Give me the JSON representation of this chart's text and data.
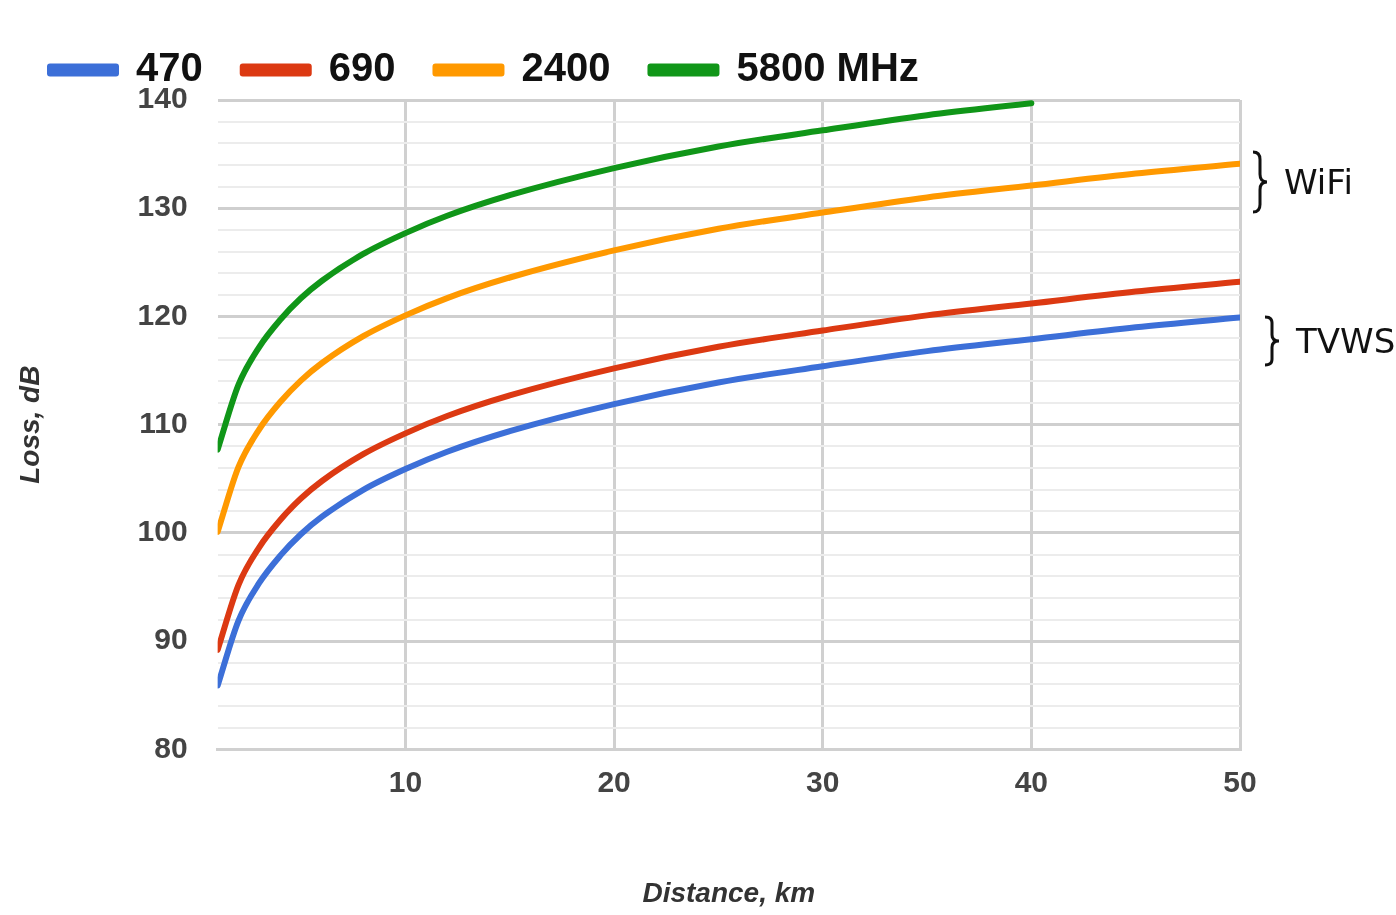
{
  "chart_data": {
    "type": "line",
    "xlabel": "Distance, km",
    "ylabel": "Loss, dB",
    "x": [
      1,
      2,
      3,
      4,
      5,
      6,
      8,
      10,
      12,
      15,
      20,
      25,
      30,
      35,
      40,
      45,
      50
    ],
    "series": [
      {
        "name": "470",
        "color": "#3c6fd8",
        "values": [
          85.9,
          91.9,
          95.4,
          97.9,
          99.9,
          101.5,
          104,
          105.9,
          107.5,
          109.4,
          111.9,
          113.9,
          115.4,
          116.8,
          117.9,
          119,
          119.9
        ]
      },
      {
        "name": "690",
        "color": "#dc3912",
        "values": [
          89.2,
          95.2,
          98.7,
          101.2,
          103.2,
          104.8,
          107.3,
          109.2,
          110.8,
          112.7,
          115.2,
          117.2,
          118.7,
          120.1,
          121.2,
          122.3,
          123.2
        ]
      },
      {
        "name": "2400",
        "color": "#ff9900",
        "values": [
          100.1,
          106.1,
          109.6,
          112.1,
          114.1,
          115.7,
          118.2,
          120.1,
          121.7,
          123.6,
          126.1,
          128.1,
          129.6,
          131,
          132.1,
          133.2,
          134.1
        ]
      },
      {
        "name": "5800 MHz",
        "color": "#109618",
        "values": [
          107.7,
          113.7,
          117.2,
          119.7,
          121.7,
          123.3,
          125.8,
          127.7,
          129.3,
          131.2,
          133.7,
          135.7,
          137.2,
          138.6,
          139.7,
          null,
          null
        ]
      }
    ],
    "xlim": [
      1,
      50
    ],
    "xticks": [
      10,
      20,
      30,
      40,
      50
    ],
    "ylim": [
      80,
      140
    ],
    "yticks": [
      80,
      {
        "value": 82,
        "label": null
      },
      {
        "value": 84,
        "label": null
      },
      {
        "value": 86,
        "label": null
      },
      {
        "value": 88,
        "label": null
      },
      90,
      {
        "value": 92,
        "label": null
      },
      {
        "value": 94,
        "label": null
      },
      {
        "value": 96,
        "label": null
      },
      {
        "value": 98,
        "label": null
      },
      100,
      {
        "value": 102,
        "label": null
      },
      {
        "value": 104,
        "label": null
      },
      {
        "value": 106,
        "label": null
      },
      {
        "value": 108,
        "label": null
      },
      110,
      {
        "value": 112,
        "label": null
      },
      {
        "value": 114,
        "label": null
      },
      {
        "value": 116,
        "label": null
      },
      {
        "value": 118,
        "label": null
      },
      120,
      {
        "value": 122,
        "label": null
      },
      {
        "value": 124,
        "label": null
      },
      {
        "value": 126,
        "label": null
      },
      {
        "value": 128,
        "label": null
      },
      130,
      {
        "value": 132,
        "label": null
      },
      {
        "value": 134,
        "label": null
      },
      {
        "value": 136,
        "label": null
      },
      {
        "value": 138,
        "label": null
      },
      140
    ],
    "grid": true,
    "legend": "top left",
    "marker": "none",
    "line_style": "solid",
    "annotations": [
      "WiFi",
      "TVWS"
    ]
  }
}
